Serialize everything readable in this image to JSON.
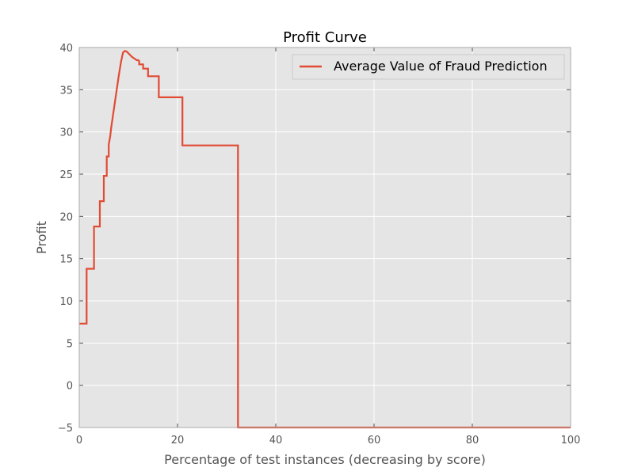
{
  "chart_data": {
    "type": "line",
    "title": "Profit Curve",
    "xlabel": "Percentage of test instances (decreasing by score)",
    "ylabel": "Profit",
    "xlim": [
      0,
      100
    ],
    "ylim": [
      -5,
      40
    ],
    "xticks": [
      0,
      20,
      40,
      60,
      80,
      100
    ],
    "yticks": [
      -5,
      0,
      5,
      10,
      15,
      20,
      25,
      30,
      35,
      40
    ],
    "grid": true,
    "legend_position": "top-right",
    "colors": {
      "background": "#e5e5e5",
      "grid": "#ffffff",
      "series": "#e24a33"
    },
    "series": [
      {
        "name": "Average Value of Fraud Prediction",
        "step": true,
        "x": [
          0,
          1.5,
          1.5,
          3.0,
          3.0,
          4.2,
          4.2,
          5.0,
          5.0,
          5.6,
          5.6,
          6.0,
          6.0,
          6.3,
          6.5,
          7.0,
          7.5,
          8.0,
          8.5,
          8.9,
          9.3,
          9.7,
          10.2,
          10.7,
          11.2,
          11.7,
          12.0,
          12.2,
          12.2,
          13.0,
          13.0,
          14.0,
          14.0,
          16.2,
          16.2,
          21.0,
          21.0,
          32.3,
          32.3,
          100
        ],
        "y": [
          7.3,
          7.3,
          13.8,
          13.8,
          18.8,
          18.8,
          21.8,
          21.8,
          24.8,
          24.8,
          27.1,
          27.1,
          28.5,
          29.5,
          30.5,
          32.5,
          34.5,
          36.5,
          38.3,
          39.4,
          39.6,
          39.5,
          39.2,
          38.9,
          38.7,
          38.5,
          38.5,
          38.4,
          38.0,
          38.0,
          37.5,
          37.5,
          36.6,
          36.6,
          34.1,
          34.1,
          28.4,
          28.4,
          -5.0,
          -5.0
        ]
      }
    ]
  }
}
